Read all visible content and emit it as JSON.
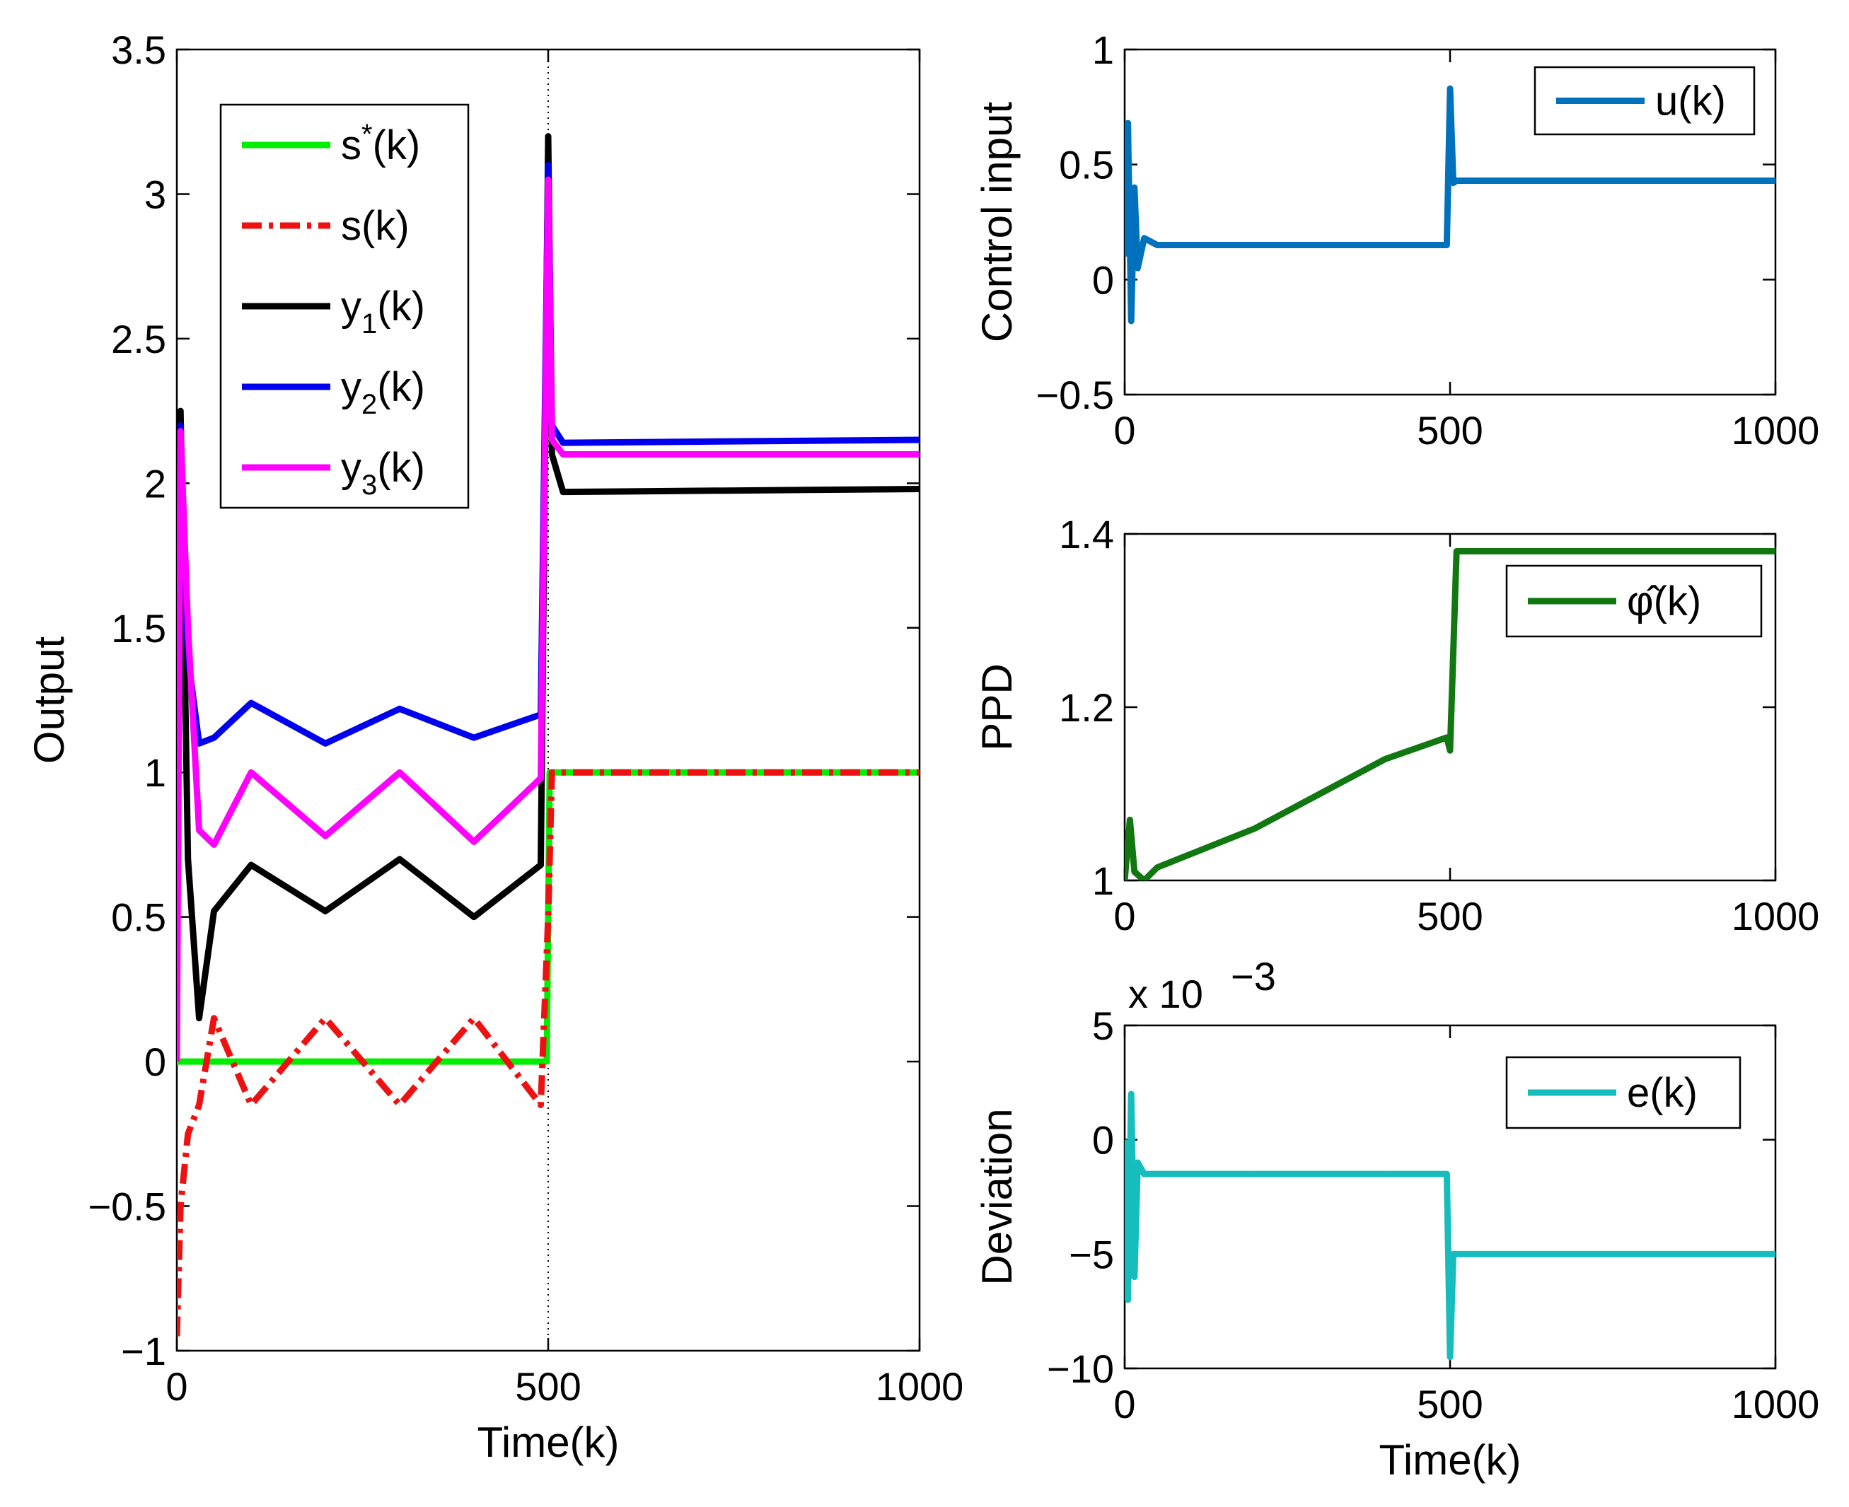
{
  "chart_data": [
    {
      "id": "output",
      "type": "line",
      "title": "",
      "xlabel": "Time(k)",
      "ylabel": "Output",
      "xlim": [
        0,
        1000
      ],
      "ylim": [
        -1,
        3.5
      ],
      "xticks": [
        "0",
        "500",
        "1000"
      ],
      "yticks": [
        "−1",
        "−0.5",
        "0",
        "0.5",
        "1",
        "1.5",
        "2",
        "2.5",
        "3",
        "3.5"
      ],
      "grid": false,
      "legend_position": "top-left",
      "vline_at": 500,
      "series": [
        {
          "name": "s*(k)",
          "label_base": "s",
          "label_sup": "*",
          "label_tail": "(k)",
          "color": "#00ee00",
          "style": "solid",
          "x": [
            0,
            30,
            50,
            498,
            502,
            1000
          ],
          "y": [
            0,
            0,
            0,
            0,
            1,
            1
          ]
        },
        {
          "name": "s(k)",
          "label_base": "s(k)",
          "color": "#ee1111",
          "style": "dashdot",
          "x": [
            0,
            5,
            15,
            30,
            50,
            100,
            200,
            300,
            400,
            490,
            500,
            505,
            1000
          ],
          "y": [
            -0.95,
            -0.5,
            -0.25,
            -0.15,
            0.15,
            -0.15,
            0.15,
            -0.15,
            0.15,
            -0.15,
            0.5,
            1,
            1
          ]
        },
        {
          "name": "y1(k)",
          "label_base": "y",
          "label_sub": "1",
          "label_tail": "(k)",
          "color": "#000000",
          "style": "solid",
          "x": [
            0,
            5,
            15,
            30,
            50,
            100,
            200,
            300,
            400,
            490,
            500,
            505,
            520,
            1000
          ],
          "y": [
            0.2,
            2.25,
            0.7,
            0.15,
            0.52,
            0.68,
            0.52,
            0.7,
            0.5,
            0.68,
            3.2,
            2.1,
            1.97,
            1.98
          ]
        },
        {
          "name": "y2(k)",
          "label_base": "y",
          "label_sub": "2",
          "label_tail": "(k)",
          "color": "#0000ee",
          "style": "solid",
          "x": [
            0,
            5,
            15,
            30,
            50,
            100,
            200,
            300,
            400,
            490,
            500,
            505,
            520,
            1000
          ],
          "y": [
            0.4,
            2.2,
            1.4,
            1.1,
            1.12,
            1.24,
            1.1,
            1.22,
            1.12,
            1.2,
            3.1,
            2.2,
            2.14,
            2.15
          ]
        },
        {
          "name": "y3(k)",
          "label_base": "y",
          "label_sub": "3",
          "label_tail": "(k)",
          "color": "#ff00ff",
          "style": "solid",
          "x": [
            0,
            5,
            15,
            30,
            50,
            100,
            200,
            300,
            400,
            490,
            500,
            505,
            520,
            1000
          ],
          "y": [
            0,
            2.18,
            1.5,
            0.8,
            0.75,
            1.0,
            0.78,
            1.0,
            0.76,
            0.98,
            3.05,
            2.15,
            2.1,
            2.1
          ]
        }
      ]
    },
    {
      "id": "control",
      "type": "line",
      "title": "",
      "xlabel": "",
      "ylabel": "Control input",
      "xlim": [
        0,
        1000
      ],
      "ylim": [
        -0.5,
        1
      ],
      "xticks": [
        "0",
        "500",
        "1000"
      ],
      "yticks": [
        "−0.5",
        "0",
        "0.5",
        "1"
      ],
      "grid": false,
      "legend_position": "top-right",
      "series": [
        {
          "name": "u(k)",
          "label_base": "u(k)",
          "color": "#0072bd",
          "style": "solid",
          "x": [
            0,
            5,
            10,
            15,
            20,
            30,
            50,
            100,
            200,
            300,
            400,
            495,
            500,
            505,
            510,
            1000
          ],
          "y": [
            0.1,
            0.68,
            -0.18,
            0.4,
            0.05,
            0.18,
            0.15,
            0.15,
            0.15,
            0.15,
            0.15,
            0.15,
            0.83,
            0.42,
            0.43,
            0.43
          ]
        }
      ]
    },
    {
      "id": "ppd",
      "type": "line",
      "title": "",
      "xlabel": "",
      "ylabel": "PPD",
      "xlim": [
        0,
        1000
      ],
      "ylim": [
        1,
        1.4
      ],
      "xticks": [
        "0",
        "500",
        "1000"
      ],
      "yticks": [
        "1",
        "1.2",
        "1.4"
      ],
      "grid": false,
      "legend_position": "top-right",
      "series": [
        {
          "name": "φ̂(k)",
          "label_base": "φ̂(k)",
          "color": "#117711",
          "style": "solid",
          "x": [
            0,
            8,
            15,
            30,
            50,
            100,
            200,
            300,
            400,
            495,
            500,
            510,
            1000
          ],
          "y": [
            1.0,
            1.07,
            1.01,
            1.0,
            1.015,
            1.03,
            1.06,
            1.1,
            1.14,
            1.165,
            1.15,
            1.38,
            1.38
          ]
        }
      ]
    },
    {
      "id": "deviation",
      "type": "line",
      "title": "",
      "xlabel": "Time(k)",
      "ylabel": "Deviation",
      "exponent_label": "x 10",
      "exponent_power": "−3",
      "xlim": [
        0,
        1000
      ],
      "ylim": [
        -10,
        5
      ],
      "xticks": [
        "0",
        "500",
        "1000"
      ],
      "yticks": [
        "−10",
        "−5",
        "0",
        "5"
      ],
      "grid": false,
      "legend_position": "top-right",
      "series": [
        {
          "name": "e(k)",
          "label_base": "e(k)",
          "color": "#17bcbc",
          "style": "solid",
          "x": [
            0,
            5,
            10,
            15,
            20,
            30,
            50,
            100,
            200,
            300,
            400,
            495,
            500,
            505,
            510,
            1000
          ],
          "y": [
            0,
            -7,
            2,
            -6,
            -1,
            -1.5,
            -1.5,
            -1.5,
            -1.5,
            -1.5,
            -1.5,
            -1.5,
            -9.5,
            -5,
            -5,
            -5
          ]
        }
      ]
    }
  ]
}
